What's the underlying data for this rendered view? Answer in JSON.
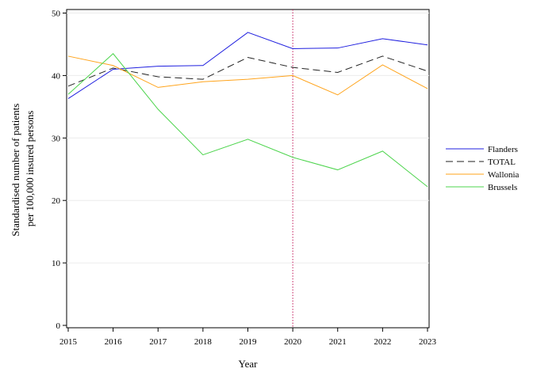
{
  "chart_data": {
    "type": "line",
    "x": [
      2015,
      2016,
      2017,
      2018,
      2019,
      2020,
      2021,
      2022,
      2023
    ],
    "series": [
      {
        "name": "Flanders",
        "color": "#1f1fdf",
        "dash": "solid",
        "values": [
          36.3,
          41.0,
          41.5,
          41.6,
          46.9,
          44.3,
          44.4,
          45.9,
          44.9
        ]
      },
      {
        "name": "TOTAL",
        "color": "#222222",
        "dash": "dashed",
        "values": [
          38.3,
          41.2,
          39.8,
          39.4,
          42.9,
          41.3,
          40.5,
          43.1,
          40.7
        ]
      },
      {
        "name": "Wallonia",
        "color": "#ffa31a",
        "dash": "solid",
        "values": [
          43.1,
          41.6,
          38.1,
          39.0,
          39.4,
          40.0,
          36.9,
          41.7,
          37.9
        ]
      },
      {
        "name": "Brussels",
        "color": "#4cd44c",
        "dash": "solid",
        "values": [
          37.0,
          43.5,
          34.6,
          27.3,
          29.8,
          26.9,
          24.9,
          27.9,
          22.2
        ]
      }
    ],
    "xlabel": "Year",
    "ylabel_lines": [
      "Standardised number of patients",
      "per 100,000 insured persons"
    ],
    "ylim": [
      0,
      50
    ],
    "yticks": [
      0,
      10,
      20,
      30,
      40,
      50
    ],
    "xticks": [
      2015,
      2016,
      2017,
      2018,
      2019,
      2020,
      2021,
      2022,
      2023
    ],
    "reference_line": {
      "x": 2020,
      "color": "#c2185b",
      "style": "dotted"
    },
    "grid": "horizontal",
    "legend_position": "right"
  }
}
